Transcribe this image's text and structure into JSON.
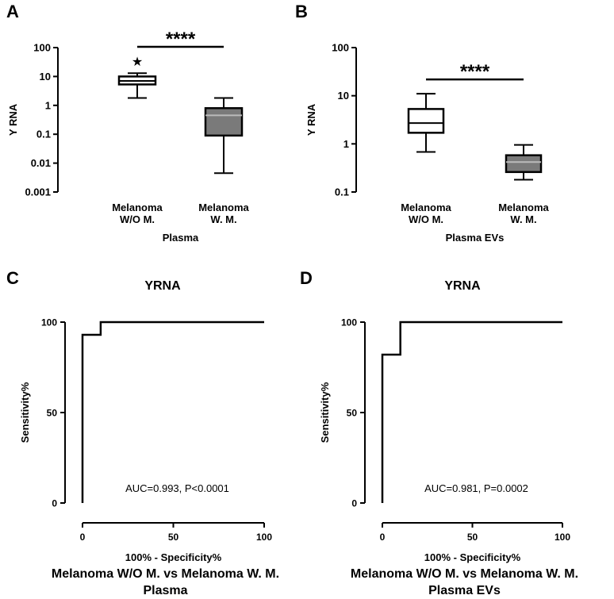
{
  "chart_data": [
    {
      "panel": "A",
      "type": "box",
      "yscale": "log",
      "ylim": [
        0.001,
        100
      ],
      "yticks": [
        "100",
        "10",
        "1",
        "0.1",
        "0.01",
        "0.001"
      ],
      "ylabel": "Y RNA",
      "xlabel": "Plasma",
      "categories": [
        [
          "Melanoma",
          "W/O M."
        ],
        [
          "Melanoma",
          "W. M."
        ]
      ],
      "boxes": [
        {
          "min": 1.8,
          "q1": 5.3,
          "median": 7.0,
          "q3": 10.0,
          "max": 13.0,
          "fill": "#ffffff",
          "outliers": [
            34
          ]
        },
        {
          "min": 0.0045,
          "q1": 0.09,
          "median": 0.45,
          "q3": 0.8,
          "max": 1.8,
          "fill": "#7a7a7a",
          "outliers": []
        }
      ],
      "significance": "****",
      "outlier_marker": "★"
    },
    {
      "panel": "B",
      "type": "box",
      "yscale": "log",
      "ylim": [
        0.1,
        100
      ],
      "yticks": [
        "100",
        "10",
        "1",
        "0.1"
      ],
      "ylabel": "Y RNA",
      "xlabel": "Plasma EVs",
      "categories": [
        [
          "Melanoma",
          "W/O M."
        ],
        [
          "Melanoma",
          "W. M."
        ]
      ],
      "boxes": [
        {
          "min": 0.68,
          "q1": 1.7,
          "median": 2.7,
          "q3": 5.3,
          "max": 11.0,
          "fill": "#ffffff",
          "outliers": []
        },
        {
          "min": 0.18,
          "q1": 0.26,
          "median": 0.42,
          "q3": 0.58,
          "max": 0.95,
          "fill": "#7a7a7a",
          "outliers": []
        }
      ],
      "significance": "****"
    },
    {
      "panel": "C",
      "type": "line",
      "title": "YRNA",
      "xlabel": "100% - Specificity%",
      "ylabel": "Sensitivity%",
      "xlim": [
        0,
        100
      ],
      "ylim": [
        0,
        100
      ],
      "xticks": [
        "0",
        "50",
        "100"
      ],
      "yticks": [
        "0",
        "50",
        "100"
      ],
      "x": [
        0,
        0,
        10,
        10,
        100
      ],
      "y": [
        0,
        93,
        93,
        100,
        100
      ],
      "annotation": "AUC=0.993, P<0.0001",
      "caption": [
        "Melanoma W/O M. vs Melanoma W. M.",
        "Plasma"
      ]
    },
    {
      "panel": "D",
      "type": "line",
      "title": "YRNA",
      "xlabel": "100% - Specificity%",
      "ylabel": "Sensitivity%",
      "xlim": [
        0,
        100
      ],
      "ylim": [
        0,
        100
      ],
      "xticks": [
        "0",
        "50",
        "100"
      ],
      "yticks": [
        "0",
        "50",
        "100"
      ],
      "x": [
        0,
        0,
        10,
        10,
        100
      ],
      "y": [
        0,
        82,
        82,
        100,
        100
      ],
      "annotation": "AUC=0.981, P=0.0002",
      "caption": [
        "Melanoma W/O M. vs Melanoma W. M.",
        "Plasma EVs"
      ]
    }
  ]
}
